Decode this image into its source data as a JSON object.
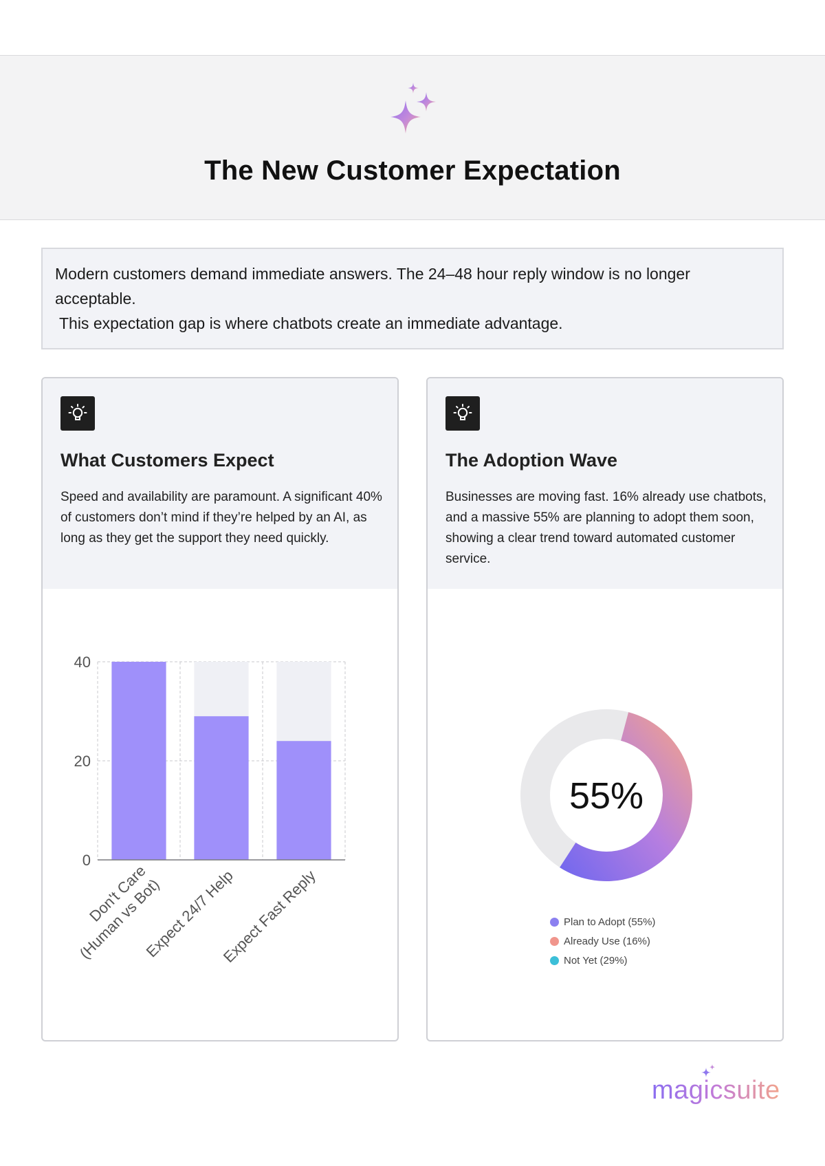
{
  "header": {
    "title": "The New Customer Expectation",
    "logo_icon": "sparkle-icon"
  },
  "intro": {
    "line1": "Modern customers demand immediate answers. The 24–48 hour reply window is no longer acceptable.",
    "line2": " This expectation gap is where chatbots create an immediate advantage."
  },
  "cards": [
    {
      "icon": "lightbulb-icon",
      "title": "What Customers Expect",
      "text": "Speed and availability are paramount. A significant 40% of customers don’t mind if they’re helped by an AI, as long as they get the support they need quickly."
    },
    {
      "icon": "lightbulb-icon",
      "title": "The Adoption Wave",
      "text": "Businesses are moving fast. 16% already use chatbots, and a massive 55% are planning to adopt them soon, showing a clear trend toward automated customer service."
    }
  ],
  "chart_data": [
    {
      "type": "bar",
      "categories": [
        [
          "Don't Care",
          "(Human vs Bot)"
        ],
        [
          "Expect 24/7 Help"
        ],
        [
          "Expect Fast Reply"
        ]
      ],
      "values": [
        40,
        29,
        24
      ],
      "background_max": 40,
      "ylim": [
        0,
        40
      ],
      "yticks": [
        "0",
        "20",
        "40"
      ],
      "ytick_values": [
        0,
        20,
        40
      ],
      "grid": true,
      "bar_color": "#9f90fa",
      "track_color": "#eff0f5",
      "title": "",
      "xlabel": "",
      "ylabel": ""
    },
    {
      "type": "pie",
      "variant": "donut",
      "center_label": "55%",
      "highlight_value": 55,
      "slices": [
        {
          "label": "Plan to Adopt (55%)",
          "value": 55,
          "color": "#8b80f0"
        },
        {
          "label": "Already Use (16%)",
          "value": 16,
          "color": "#f0958c"
        },
        {
          "label": "Not Yet (29%)",
          "value": 29,
          "color": "#3cbfd8"
        }
      ],
      "track_color": "#e9e9eb",
      "gradient": [
        "#6f67ef",
        "#b67ee0",
        "#f8a683"
      ],
      "legend_position": "bottom"
    }
  ],
  "brand": {
    "name": "magicsuite",
    "icon": "sparkle-icon"
  }
}
